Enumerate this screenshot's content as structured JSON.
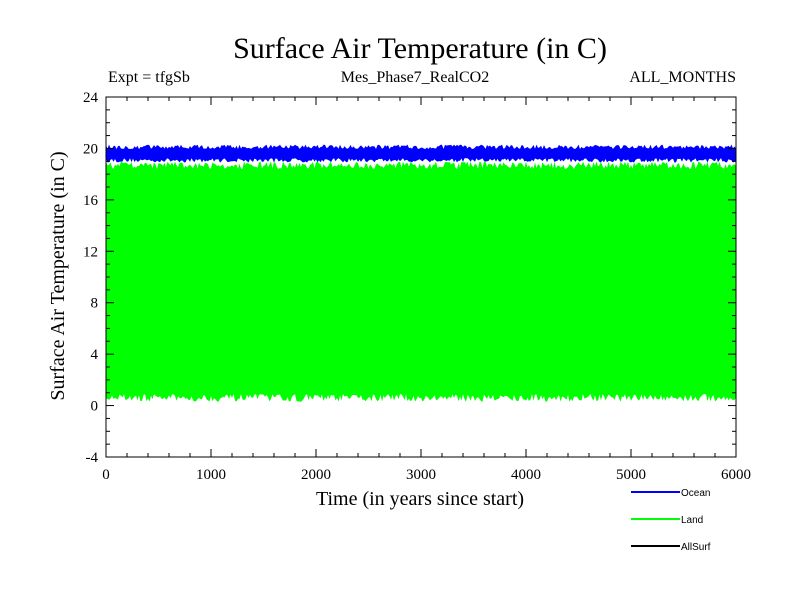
{
  "chart_data": {
    "type": "area",
    "title": "Surface Air Temperature (in C)",
    "subtitle_left": "Expt = tfgSb",
    "subtitle_center": "Mes_Phase7_RealCO2",
    "subtitle_right": "ALL_MONTHS",
    "xlabel": "Time (in years since start)",
    "ylabel": "Surface Air Temperature (in C)",
    "xlim": [
      0,
      6000
    ],
    "ylim": [
      -4,
      24
    ],
    "xticks": [
      "0",
      "1000",
      "2000",
      "3000",
      "4000",
      "5000",
      "6000"
    ],
    "xtick_values": [
      0,
      1000,
      2000,
      3000,
      4000,
      5000,
      6000
    ],
    "yticks": [
      "-4",
      "0",
      "4",
      "8",
      "12",
      "16",
      "20",
      "24"
    ],
    "ytick_values": [
      -4,
      0,
      4,
      8,
      12,
      16,
      20,
      24
    ],
    "series": [
      {
        "name": "Ocean",
        "color": "#0000ff",
        "min": 18.9,
        "max": 20.3,
        "mean": 19.6
      },
      {
        "name": "Land",
        "color": "#00ff00",
        "min": 0.3,
        "max": 19.0,
        "mean": 9.7
      },
      {
        "name": "AllSurf",
        "color": "#000000",
        "min": null,
        "max": null,
        "mean": null
      }
    ],
    "legend_position": "bottom-right"
  }
}
